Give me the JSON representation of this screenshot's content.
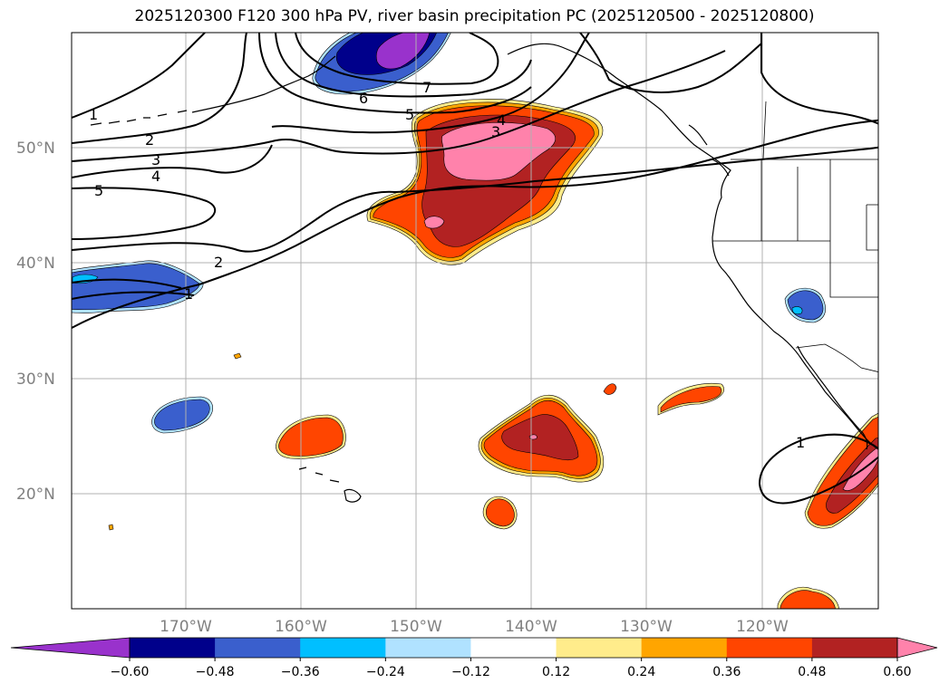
{
  "title": "2025120300 F120 300 hPa PV, river basin precipitation PC (2025120500 - 2025120800)",
  "map": {
    "lat_labels": [
      "50°N",
      "40°N",
      "30°N",
      "20°N"
    ],
    "lon_labels": [
      "170°W",
      "160°W",
      "150°W",
      "140°W",
      "130°W",
      "120°W"
    ],
    "contour_labels": [
      "1",
      "2",
      "3",
      "4",
      "5",
      "6",
      "7",
      "5",
      "4",
      "3",
      "2",
      "1",
      "1"
    ]
  },
  "colorbar": {
    "ticks": [
      "−0.60",
      "−0.48",
      "−0.36",
      "−0.24",
      "−0.12",
      "0.12",
      "0.24",
      "0.36",
      "0.48",
      "0.60"
    ],
    "colors": [
      "#9932cc",
      "#00008b",
      "#3a5fcd",
      "#00bfff",
      "#b0e2ff",
      "#ffffff",
      "#ffec8b",
      "#ffa500",
      "#ff4500",
      "#b22222",
      "#ff82ab"
    ]
  },
  "colors": {
    "pos_light": "#ffec8b",
    "pos_orange": "#ffa500",
    "pos_redorange": "#ff4500",
    "pos_darkred": "#b22222",
    "pos_pink": "#ff82ab",
    "neg_lightblue": "#b0e2ff",
    "neg_skyblue": "#00bfff",
    "neg_blue": "#3a5fcd",
    "neg_navy": "#00008b",
    "neg_purple": "#9932cc",
    "grid": "#b0b0b0",
    "axis_label": "#808080"
  }
}
